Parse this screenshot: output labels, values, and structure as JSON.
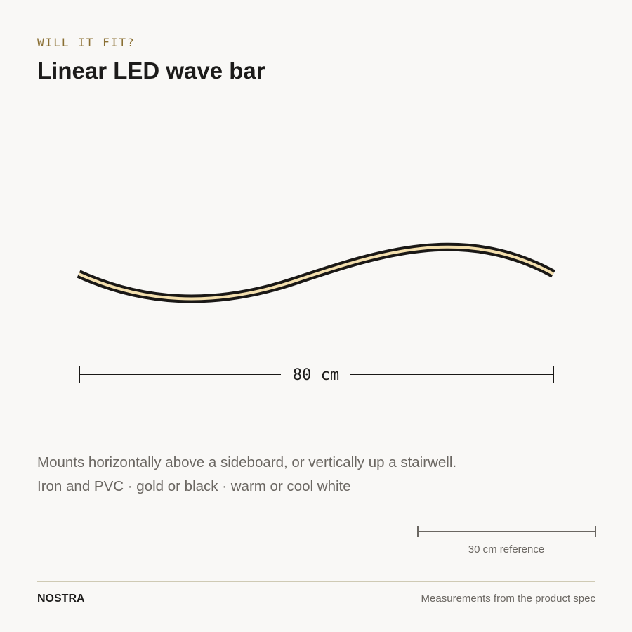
{
  "header": {
    "eyebrow": "WILL IT FIT?",
    "title": "Linear LED wave bar"
  },
  "illustration": {
    "product": "wave-led-bar",
    "width_label": "80 cm",
    "colors": {
      "bar_outline": "#1a1816",
      "bar_light": "#f3dfae"
    }
  },
  "description": {
    "line1": "Mounts horizontally above a sideboard, or vertically up a stairwell.",
    "line2": "Iron and PVC · gold or black · warm or cool white"
  },
  "reference": {
    "label": "30 cm reference"
  },
  "footer": {
    "brand": "NOSTRA",
    "note": "Measurements from the product spec"
  },
  "theme": {
    "background": "#f9f8f6",
    "accent": "#8a6f33",
    "text": "#1c1b1a",
    "muted_text": "#6b6762",
    "rule": "#cfcab4"
  }
}
